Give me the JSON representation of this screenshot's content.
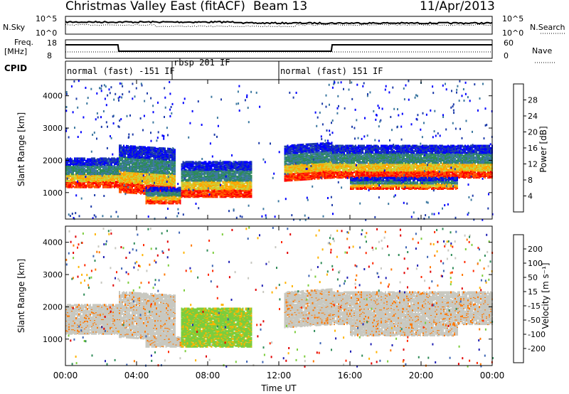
{
  "header": {
    "title": "Christmas Valley East (fitACF)",
    "beam": "Beam 13",
    "date": "11/Apr/2013"
  },
  "top_panels": {
    "nsky_label": "N.Sky",
    "nsky_ticks": [
      "10^5",
      "10^0"
    ],
    "nsearch_label": "N.Search",
    "nsearch_ticks": [
      "10^5",
      "10^0"
    ],
    "freq_label": "Freq.",
    "freq_unit": "[MHz]",
    "freq_ticks": [
      "18",
      "8"
    ],
    "nave_label": "Nave",
    "nave_ticks": [
      "60",
      "0"
    ],
    "cpid_label": "CPID",
    "cpid_modes": [
      "normal (fast) -151 IF",
      "rbsp 201 IF",
      "normal (fast) 151 IF"
    ]
  },
  "chart_data": [
    {
      "type": "heatmap",
      "name": "power",
      "ylabel": "Slant Range [km]",
      "yticks": [
        "4000",
        "3000",
        "2000",
        "1000"
      ],
      "ylim": [
        180,
        4500
      ],
      "xlim": [
        0,
        24
      ],
      "colorbar_label": "Power [dB]",
      "colorbar_ticks": [
        "28",
        "24",
        "20",
        "16",
        "12",
        "8",
        "4"
      ],
      "colors": [
        "#ff0000",
        "#ff5a00",
        "#ffa500",
        "#c8d23c",
        "#2e8b57",
        "#3c78a0",
        "#1e3caa",
        "#0000ff"
      ],
      "bands": [
        {
          "t0": 0.0,
          "t1": 3.0,
          "r0": 1200,
          "r1": 2100
        },
        {
          "t0": 3.0,
          "t1": 6.2,
          "r0": 1050,
          "r1": 2500
        },
        {
          "t0": 4.5,
          "t1": 6.5,
          "r0": 700,
          "r1": 1200
        },
        {
          "t0": 6.5,
          "t1": 10.5,
          "r0": 900,
          "r1": 2000
        },
        {
          "t0": 12.3,
          "t1": 15.0,
          "r0": 1400,
          "r1": 2500
        },
        {
          "t0": 15.0,
          "t1": 24.0,
          "r0": 1500,
          "r1": 2500
        },
        {
          "t0": 16.0,
          "t1": 22.0,
          "r0": 1150,
          "r1": 1500
        }
      ]
    },
    {
      "type": "heatmap",
      "name": "velocity",
      "ylabel": "Slant Range [km]",
      "yticks": [
        "4000",
        "3000",
        "2000",
        "1000"
      ],
      "ylim": [
        180,
        4500
      ],
      "xlim": [
        0,
        24
      ],
      "colorbar_label": "Velocity [m s⁻¹]",
      "colorbar_ticks": [
        "200",
        "100",
        "50",
        "15",
        "-15",
        "-50",
        "-100",
        "-200"
      ],
      "colors": [
        "#1e1eb4",
        "#3c64b4",
        "#2e8b57",
        "#7ccd3c",
        "#c8c8c0",
        "#ffb400",
        "#ff7800",
        "#ff2800",
        "#e10000"
      ],
      "x_ticks": [
        "00:00",
        "04:00",
        "08:00",
        "12:00",
        "16:00",
        "20:00",
        "00:00"
      ],
      "xlabel": "Time UT",
      "bands": [
        {
          "t0": 0.0,
          "t1": 3.0,
          "r0": 1200,
          "r1": 2100,
          "v": "gray"
        },
        {
          "t0": 3.0,
          "t1": 6.2,
          "r0": 1100,
          "r1": 2500,
          "v": "gray"
        },
        {
          "t0": 4.5,
          "t1": 6.5,
          "r0": 800,
          "r1": 1100,
          "v": "gray"
        },
        {
          "t0": 6.5,
          "t1": 10.5,
          "r0": 800,
          "r1": 2000,
          "v": "green"
        },
        {
          "t0": 12.3,
          "t1": 15.0,
          "r0": 1400,
          "r1": 2500,
          "v": "gray"
        },
        {
          "t0": 15.0,
          "t1": 24.0,
          "r0": 1500,
          "r1": 2500,
          "v": "gray"
        },
        {
          "t0": 16.0,
          "t1": 22.0,
          "r0": 1150,
          "r1": 1500,
          "v": "gray"
        }
      ]
    }
  ]
}
